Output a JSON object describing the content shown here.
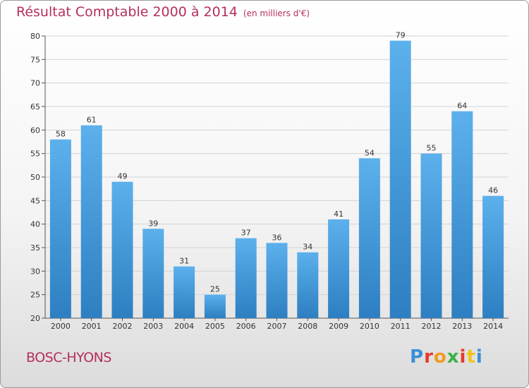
{
  "chart_data": {
    "type": "bar",
    "title": "Résultat Comptable 2000 à 2014",
    "subtitle": "(en milliers d'€)",
    "categories": [
      "2000",
      "2001",
      "2002",
      "2003",
      "2004",
      "2005",
      "2006",
      "2007",
      "2008",
      "2009",
      "2010",
      "2011",
      "2012",
      "2013",
      "2014"
    ],
    "values": [
      58,
      61,
      49,
      39,
      31,
      25,
      37,
      36,
      34,
      41,
      54,
      79,
      55,
      64,
      46
    ],
    "ylim": [
      20,
      80
    ],
    "yticks": [
      20,
      25,
      30,
      35,
      40,
      45,
      50,
      55,
      60,
      65,
      70,
      75,
      80
    ],
    "xlabel": "",
    "ylabel": "",
    "grid": true,
    "colors": {
      "bar_top": "#5cb0ec",
      "bar_bottom": "#2d7fc1",
      "title": "#b5305a",
      "grid": "#d4d4d4"
    }
  },
  "location": "BOSC-HYONS",
  "logo": {
    "text": "Proxiti",
    "colors": [
      "#3a8fd6",
      "#e53b2c",
      "#f29a1f",
      "#3cb043",
      "#e53b2c",
      "#f0c419",
      "#3a8fd6"
    ]
  }
}
